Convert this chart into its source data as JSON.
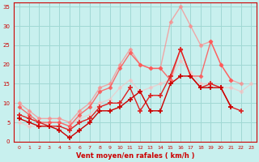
{
  "xlabel": "Vent moyen/en rafales ( km/h )",
  "xlim": [
    -0.5,
    23.5
  ],
  "ylim": [
    0,
    36
  ],
  "yticks": [
    0,
    5,
    10,
    15,
    20,
    25,
    30,
    35
  ],
  "xticks": [
    0,
    1,
    2,
    3,
    4,
    5,
    6,
    7,
    8,
    9,
    10,
    11,
    12,
    13,
    14,
    15,
    16,
    17,
    18,
    19,
    20,
    21,
    22,
    23
  ],
  "bg_color": "#c8f0ee",
  "grid_color": "#a0d8d4",
  "series": [
    {
      "color": "#cc0000",
      "alpha": 1.0,
      "lw": 1.0,
      "marker": "+",
      "ms": 4,
      "mew": 1.2,
      "data": [
        6,
        5,
        4,
        4,
        3,
        1,
        3,
        5,
        8,
        8,
        9,
        11,
        13,
        8,
        8,
        15,
        17,
        17,
        14,
        14,
        14,
        9,
        null,
        null
      ]
    },
    {
      "color": "#dd2222",
      "alpha": 1.0,
      "lw": 1.0,
      "marker": "+",
      "ms": 4,
      "mew": 1.2,
      "data": [
        7,
        6,
        5,
        4,
        4,
        3,
        5,
        6,
        9,
        10,
        10,
        14,
        8,
        12,
        12,
        17,
        24,
        17,
        14,
        15,
        14,
        9,
        8,
        null
      ]
    },
    {
      "color": "#ff5555",
      "alpha": 0.85,
      "lw": 1.0,
      "marker": "D",
      "ms": 2.5,
      "mew": 0.5,
      "data": [
        9,
        7,
        5,
        5,
        5,
        4,
        7,
        9,
        13,
        14,
        19,
        23,
        20,
        19,
        19,
        16,
        24,
        17,
        17,
        26,
        20,
        16,
        null,
        null
      ]
    },
    {
      "color": "#ff8888",
      "alpha": 0.7,
      "lw": 1.0,
      "marker": "D",
      "ms": 2.5,
      "mew": 0.5,
      "data": [
        10,
        8,
        6,
        6,
        6,
        5,
        8,
        10,
        14,
        15,
        20,
        24,
        20,
        19,
        19,
        31,
        35,
        30,
        25,
        26,
        20,
        16,
        15,
        null
      ]
    },
    {
      "color": "#ffbbbb",
      "alpha": 0.55,
      "lw": 1.0,
      "marker": "D",
      "ms": 2.5,
      "mew": 0.5,
      "data": [
        5,
        4,
        4,
        5,
        5,
        4,
        6,
        7,
        10,
        11,
        14,
        16,
        13,
        14,
        15,
        16,
        21,
        18,
        15,
        15,
        14,
        14,
        13,
        15
      ]
    }
  ]
}
